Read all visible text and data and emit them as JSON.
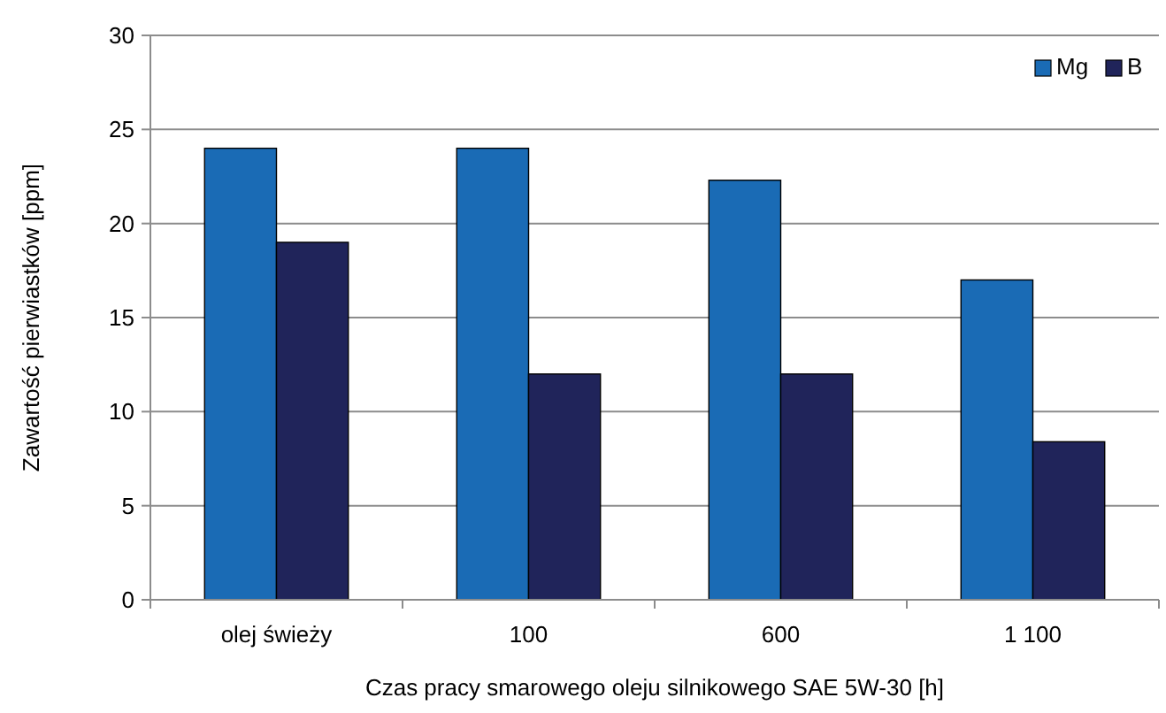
{
  "chart_data": {
    "type": "bar",
    "xlabel": "Czas pracy smarowego oleju silnikowego SAE 5W-30 [h]",
    "ylabel": "Zawartość pierwiastków [ppm]",
    "categories": [
      "olej świeży",
      "100",
      "600",
      "1 100"
    ],
    "series": [
      {
        "name": "Mg",
        "color": "#1a6bb5",
        "values": [
          24,
          24,
          22.3,
          17
        ]
      },
      {
        "name": "B",
        "color": "#20245a",
        "values": [
          19,
          12,
          12,
          8.4
        ]
      }
    ],
    "ylim": [
      0,
      30
    ],
    "yticks": [
      0,
      5,
      10,
      15,
      20,
      25,
      30
    ],
    "grid": "y",
    "legend": "top right"
  }
}
